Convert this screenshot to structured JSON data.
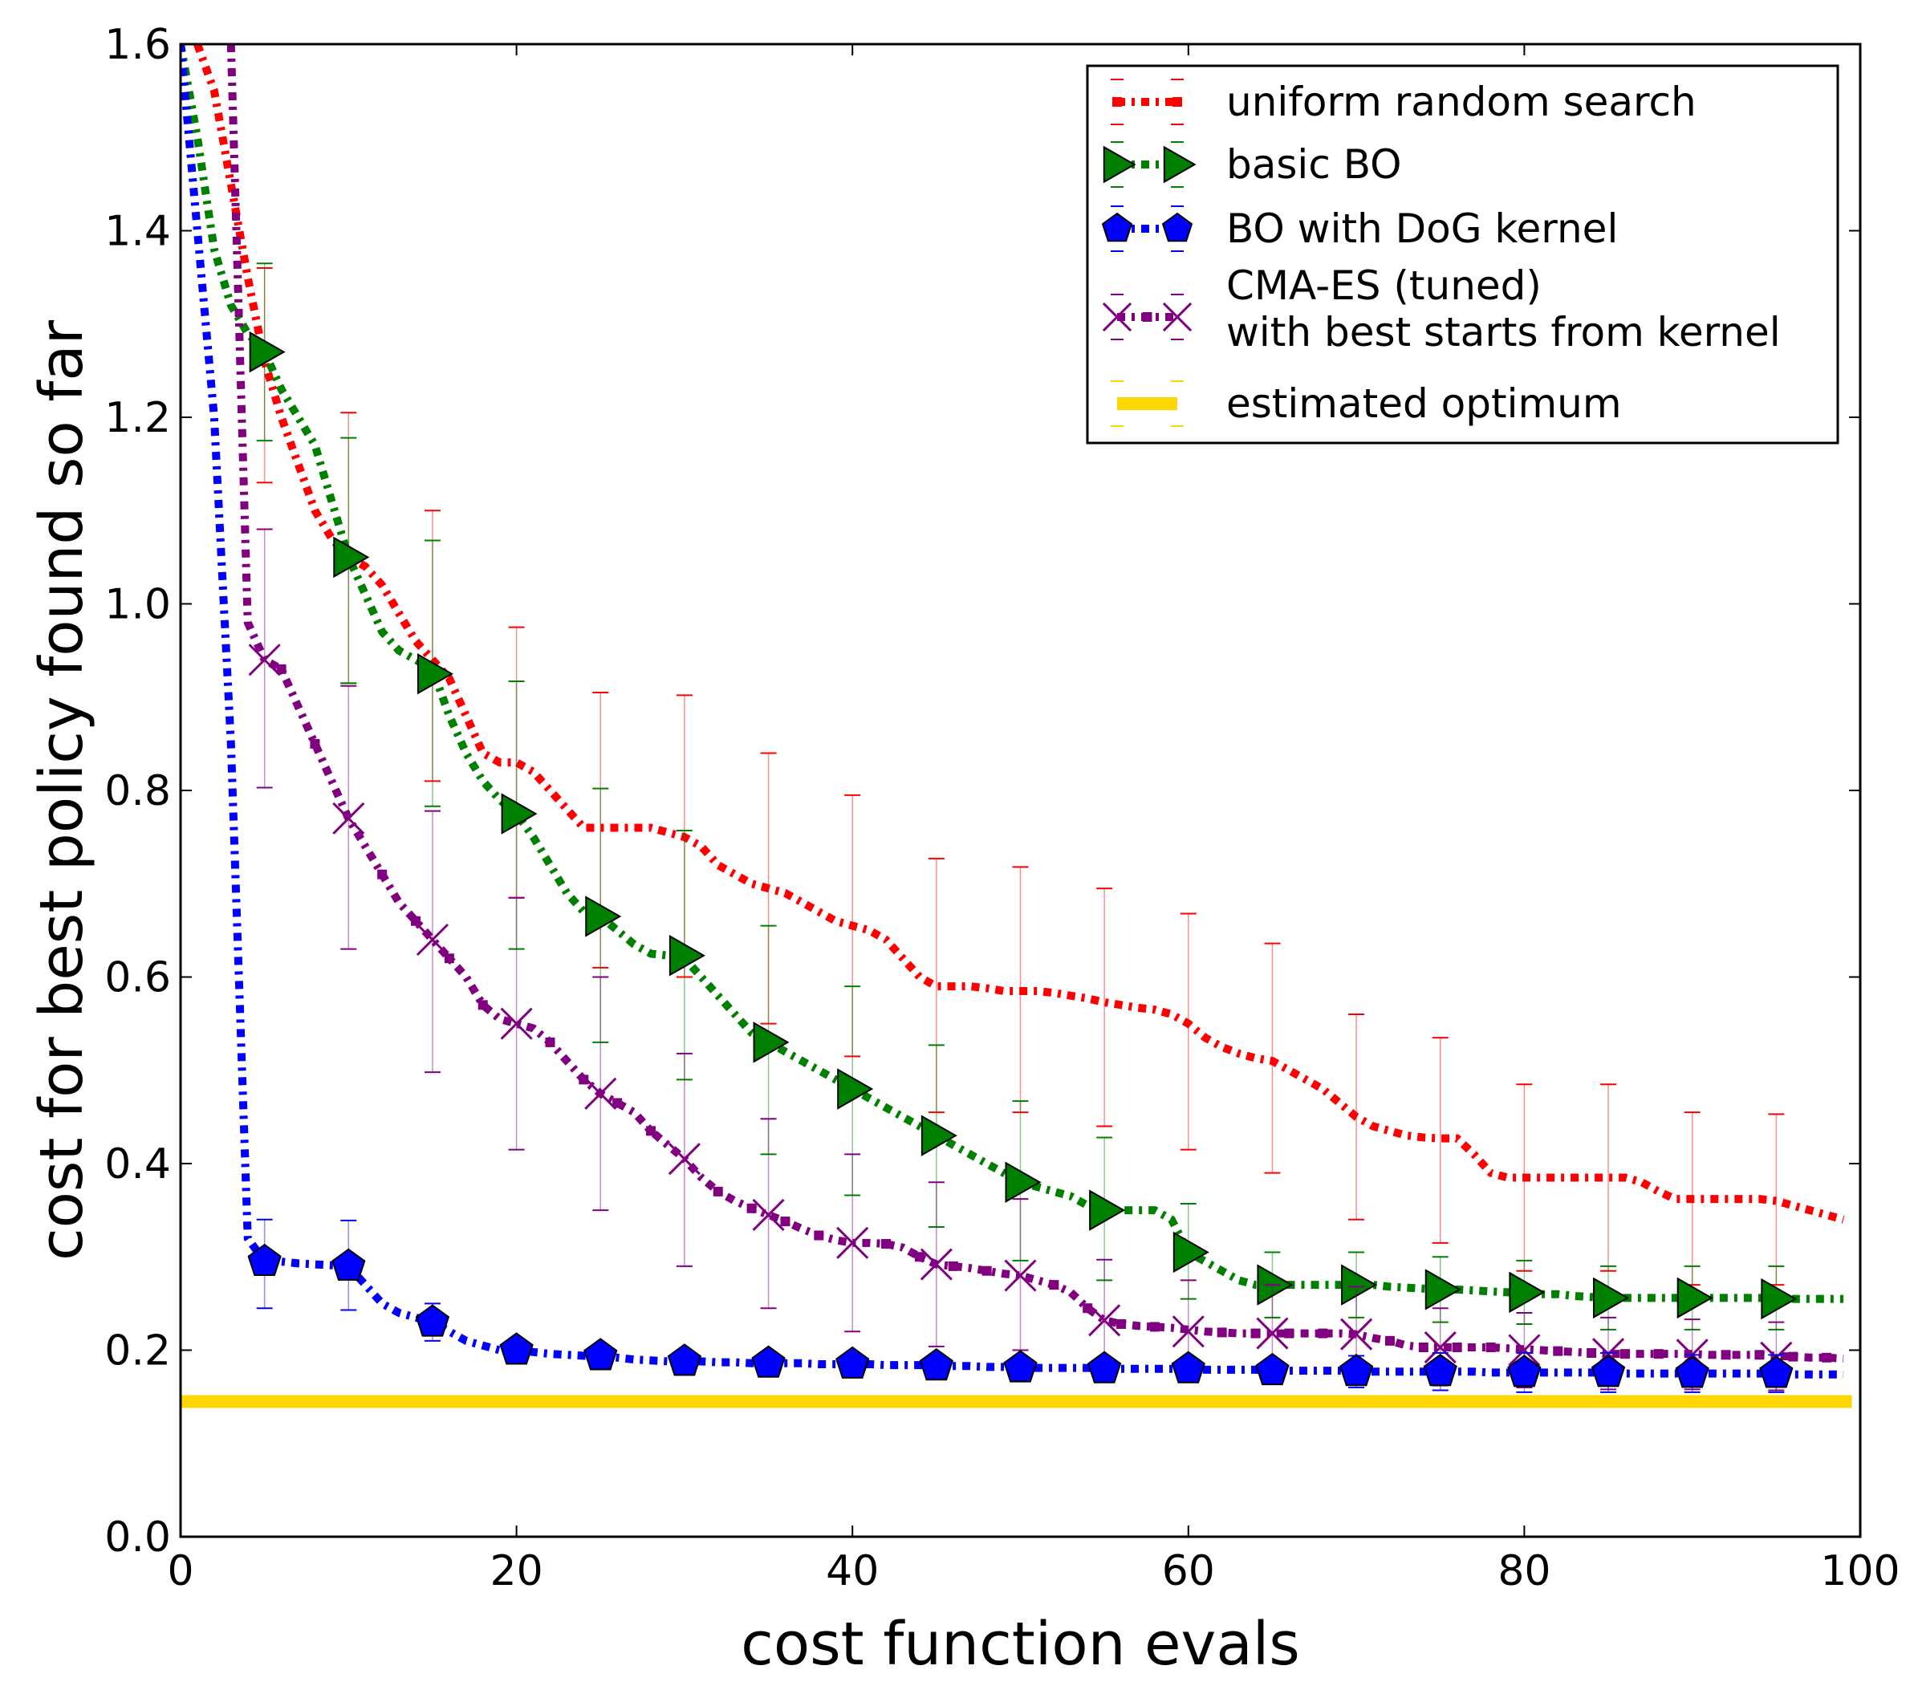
{
  "chart_data": {
    "type": "line",
    "xlabel": "cost function evals",
    "ylabel": "cost for best policy found so far",
    "xlim": [
      0,
      100
    ],
    "ylim": [
      0.0,
      1.6
    ],
    "x_ticks": [
      "0",
      "20",
      "40",
      "60",
      "80",
      "100"
    ],
    "y_ticks": [
      "0.0",
      "0.2",
      "0.4",
      "0.6",
      "0.8",
      "1.0",
      "1.2",
      "1.4",
      "1.6"
    ],
    "legend_position": "top-right",
    "grid": false,
    "series": [
      {
        "name": "uniform random search",
        "color": "#ff0000",
        "marker": "square-small",
        "x": [
          1,
          2,
          3,
          4,
          5,
          6,
          7,
          8,
          9,
          10,
          11,
          12,
          13,
          14,
          15,
          16,
          17,
          18,
          19,
          20,
          21,
          22,
          23,
          24,
          25,
          26,
          27,
          28,
          29,
          30,
          31,
          32,
          33,
          34,
          35,
          36,
          37,
          38,
          39,
          40,
          41,
          42,
          43,
          44,
          45,
          46,
          47,
          48,
          49,
          50,
          51,
          52,
          53,
          54,
          55,
          56,
          57,
          58,
          59,
          60,
          61,
          62,
          63,
          64,
          65,
          66,
          67,
          68,
          69,
          70,
          71,
          72,
          73,
          74,
          75,
          76,
          77,
          78,
          79,
          80,
          81,
          82,
          83,
          84,
          85,
          86,
          87,
          88,
          89,
          90,
          91,
          92,
          93,
          94,
          95,
          96,
          97,
          98,
          99
        ],
        "y": [
          1.6,
          1.55,
          1.45,
          1.35,
          1.26,
          1.2,
          1.15,
          1.1,
          1.07,
          1.05,
          1.04,
          1.02,
          0.99,
          0.96,
          0.94,
          0.92,
          0.88,
          0.84,
          0.83,
          0.83,
          0.82,
          0.8,
          0.78,
          0.76,
          0.76,
          0.76,
          0.76,
          0.76,
          0.755,
          0.75,
          0.74,
          0.72,
          0.71,
          0.7,
          0.695,
          0.69,
          0.68,
          0.67,
          0.66,
          0.655,
          0.65,
          0.64,
          0.62,
          0.6,
          0.59,
          0.59,
          0.59,
          0.588,
          0.585,
          0.585,
          0.585,
          0.583,
          0.58,
          0.577,
          0.573,
          0.57,
          0.567,
          0.565,
          0.56,
          0.55,
          0.535,
          0.525,
          0.518,
          0.513,
          0.51,
          0.5,
          0.49,
          0.48,
          0.465,
          0.45,
          0.44,
          0.435,
          0.43,
          0.428,
          0.427,
          0.427,
          0.41,
          0.39,
          0.385,
          0.385,
          0.385,
          0.385,
          0.385,
          0.385,
          0.385,
          0.385,
          0.38,
          0.37,
          0.362,
          0.362,
          0.362,
          0.362,
          0.362,
          0.362,
          0.36,
          0.355,
          0.35,
          0.345,
          0.34
        ],
        "err_x": [
          5,
          10,
          15,
          20,
          25,
          30,
          35,
          40,
          45,
          50,
          55,
          60,
          65,
          70,
          75,
          80,
          85,
          90,
          95
        ],
        "err_mean": [
          1.26,
          1.05,
          0.94,
          0.83,
          0.76,
          0.755,
          0.695,
          0.655,
          0.59,
          0.585,
          0.573,
          0.55,
          0.513,
          0.45,
          0.427,
          0.385,
          0.385,
          0.362,
          0.36
        ],
        "err_lo": [
          1.13,
          0.915,
          0.81,
          0.685,
          0.61,
          0.6,
          0.55,
          0.515,
          0.455,
          0.455,
          0.44,
          0.415,
          0.39,
          0.34,
          0.315,
          0.285,
          0.285,
          0.27,
          0.27
        ],
        "err_hi": [
          1.36,
          1.205,
          1.1,
          0.975,
          0.905,
          0.902,
          0.84,
          0.795,
          0.727,
          0.718,
          0.695,
          0.668,
          0.636,
          0.56,
          0.535,
          0.485,
          0.485,
          0.455,
          0.453
        ]
      },
      {
        "name": "basic BO",
        "color": "#008000",
        "marker": "triangle-right",
        "x": [
          0,
          1,
          2,
          3,
          4,
          5,
          6,
          7,
          8,
          9,
          10,
          11,
          12,
          13,
          14,
          15,
          16,
          17,
          18,
          19,
          20,
          21,
          22,
          23,
          24,
          25,
          26,
          27,
          28,
          29,
          30,
          31,
          32,
          33,
          34,
          35,
          36,
          37,
          38,
          39,
          40,
          41,
          42,
          43,
          44,
          45,
          46,
          47,
          48,
          49,
          50,
          51,
          52,
          53,
          54,
          55,
          56,
          57,
          58,
          59,
          60,
          61,
          62,
          63,
          64,
          65,
          66,
          67,
          68,
          69,
          70,
          71,
          72,
          73,
          74,
          75,
          76,
          77,
          78,
          79,
          80,
          81,
          82,
          83,
          84,
          85,
          86,
          87,
          88,
          89,
          90,
          91,
          92,
          93,
          94,
          95,
          96,
          97,
          98,
          99
        ],
        "y": [
          1.6,
          1.5,
          1.38,
          1.32,
          1.29,
          1.27,
          1.23,
          1.2,
          1.17,
          1.11,
          1.05,
          1.01,
          0.97,
          0.95,
          0.94,
          0.93,
          0.88,
          0.84,
          0.81,
          0.79,
          0.775,
          0.75,
          0.72,
          0.69,
          0.67,
          0.665,
          0.65,
          0.635,
          0.625,
          0.623,
          0.62,
          0.6,
          0.58,
          0.56,
          0.54,
          0.53,
          0.52,
          0.51,
          0.5,
          0.49,
          0.48,
          0.47,
          0.46,
          0.45,
          0.44,
          0.43,
          0.42,
          0.41,
          0.4,
          0.39,
          0.38,
          0.375,
          0.37,
          0.365,
          0.355,
          0.35,
          0.35,
          0.35,
          0.35,
          0.34,
          0.305,
          0.295,
          0.285,
          0.275,
          0.27,
          0.27,
          0.27,
          0.27,
          0.27,
          0.27,
          0.27,
          0.27,
          0.268,
          0.267,
          0.266,
          0.265,
          0.265,
          0.264,
          0.263,
          0.262,
          0.262,
          0.26,
          0.26,
          0.258,
          0.257,
          0.256,
          0.256,
          0.256,
          0.256,
          0.256,
          0.256,
          0.256,
          0.256,
          0.256,
          0.256,
          0.256,
          0.255,
          0.255,
          0.255,
          0.255
        ],
        "err_x": [
          5,
          10,
          15,
          20,
          25,
          30,
          35,
          40,
          45,
          50,
          55,
          60,
          65,
          70,
          75,
          80,
          85,
          90,
          95
        ],
        "err_mean": [
          1.27,
          1.05,
          0.925,
          0.775,
          0.665,
          0.623,
          0.53,
          0.48,
          0.43,
          0.38,
          0.35,
          0.305,
          0.27,
          0.27,
          0.265,
          0.262,
          0.256,
          0.256,
          0.255
        ],
        "err_lo": [
          1.175,
          0.915,
          0.783,
          0.63,
          0.53,
          0.49,
          0.41,
          0.366,
          0.332,
          0.296,
          0.275,
          0.255,
          0.235,
          0.235,
          0.23,
          0.228,
          0.222,
          0.222,
          0.222
        ],
        "err_hi": [
          1.365,
          1.178,
          1.068,
          0.917,
          0.802,
          0.757,
          0.655,
          0.59,
          0.527,
          0.467,
          0.428,
          0.357,
          0.305,
          0.305,
          0.3,
          0.296,
          0.29,
          0.29,
          0.29
        ]
      },
      {
        "name": "BO with DoG kernel",
        "color": "#0000ff",
        "marker": "pentagon",
        "x": [
          0,
          1,
          2,
          3,
          4,
          5,
          6,
          7,
          8,
          9,
          10,
          11,
          12,
          13,
          14,
          15,
          16,
          17,
          18,
          19,
          20,
          21,
          22,
          23,
          24,
          25,
          26,
          27,
          28,
          29,
          30,
          31,
          32,
          33,
          34,
          35,
          36,
          37,
          38,
          39,
          40,
          41,
          42,
          43,
          44,
          45,
          46,
          47,
          48,
          49,
          50,
          51,
          52,
          53,
          54,
          55,
          56,
          57,
          58,
          59,
          60,
          61,
          62,
          63,
          64,
          65,
          66,
          67,
          68,
          69,
          70,
          71,
          72,
          73,
          74,
          75,
          76,
          77,
          78,
          79,
          80,
          81,
          82,
          83,
          84,
          85,
          86,
          87,
          88,
          89,
          90,
          91,
          92,
          93,
          94,
          95,
          96,
          97,
          98,
          99
        ],
        "y": [
          1.6,
          1.4,
          1.2,
          0.85,
          0.32,
          0.295,
          0.295,
          0.293,
          0.292,
          0.291,
          0.29,
          0.27,
          0.25,
          0.24,
          0.235,
          0.23,
          0.22,
          0.21,
          0.205,
          0.2,
          0.2,
          0.198,
          0.196,
          0.195,
          0.194,
          0.194,
          0.192,
          0.19,
          0.189,
          0.188,
          0.188,
          0.188,
          0.187,
          0.187,
          0.186,
          0.186,
          0.186,
          0.186,
          0.185,
          0.185,
          0.185,
          0.185,
          0.184,
          0.184,
          0.184,
          0.183,
          0.183,
          0.183,
          0.182,
          0.182,
          0.181,
          0.181,
          0.181,
          0.181,
          0.181,
          0.18,
          0.18,
          0.18,
          0.18,
          0.18,
          0.18,
          0.179,
          0.179,
          0.179,
          0.179,
          0.178,
          0.178,
          0.178,
          0.178,
          0.178,
          0.177,
          0.177,
          0.177,
          0.177,
          0.177,
          0.177,
          0.177,
          0.177,
          0.176,
          0.176,
          0.176,
          0.176,
          0.176,
          0.176,
          0.176,
          0.176,
          0.175,
          0.175,
          0.175,
          0.175,
          0.175,
          0.175,
          0.175,
          0.175,
          0.175,
          0.175,
          0.174,
          0.174,
          0.174,
          0.174
        ],
        "err_x": [
          5,
          10,
          15,
          20,
          25,
          30,
          35,
          40,
          45,
          50,
          55,
          60,
          65,
          70,
          75,
          80,
          85,
          90,
          95
        ],
        "err_mean": [
          0.295,
          0.29,
          0.23,
          0.2,
          0.194,
          0.188,
          0.186,
          0.185,
          0.183,
          0.181,
          0.18,
          0.18,
          0.178,
          0.177,
          0.177,
          0.176,
          0.176,
          0.175,
          0.175
        ],
        "err_lo": [
          0.245,
          0.243,
          0.21,
          0.19,
          0.185,
          0.18,
          0.178,
          0.176,
          0.175,
          0.172,
          0.171,
          0.17,
          0.165,
          0.16,
          0.157,
          0.155,
          0.155,
          0.155,
          0.155
        ],
        "err_hi": [
          0.34,
          0.339,
          0.25,
          0.21,
          0.203,
          0.196,
          0.194,
          0.194,
          0.191,
          0.19,
          0.189,
          0.19,
          0.19,
          0.194,
          0.197,
          0.197,
          0.197,
          0.195,
          0.195
        ]
      },
      {
        "name": "CMA-ES (tuned)\nwith best starts from kernel",
        "legend_lines": [
          "CMA-ES (tuned)",
          "with best starts from kernel"
        ],
        "color": "#800080",
        "marker": "x",
        "x": [
          3,
          4,
          5,
          6,
          7,
          8,
          9,
          10,
          11,
          12,
          13,
          14,
          15,
          16,
          17,
          18,
          19,
          20,
          21,
          22,
          23,
          24,
          25,
          26,
          27,
          28,
          29,
          30,
          31,
          32,
          33,
          34,
          35,
          36,
          37,
          38,
          39,
          40,
          41,
          42,
          43,
          44,
          45,
          46,
          47,
          48,
          49,
          50,
          51,
          52,
          53,
          54,
          55,
          56,
          57,
          58,
          59,
          60,
          61,
          62,
          63,
          64,
          65,
          66,
          67,
          68,
          69,
          70,
          71,
          72,
          73,
          74,
          75,
          76,
          77,
          78,
          79,
          80,
          81,
          82,
          83,
          84,
          85,
          86,
          87,
          88,
          89,
          90,
          91,
          92,
          93,
          94,
          95,
          96,
          97,
          98,
          99
        ],
        "y": [
          1.6,
          0.98,
          0.94,
          0.93,
          0.89,
          0.85,
          0.81,
          0.77,
          0.74,
          0.71,
          0.68,
          0.66,
          0.64,
          0.62,
          0.6,
          0.57,
          0.555,
          0.55,
          0.545,
          0.53,
          0.51,
          0.49,
          0.475,
          0.465,
          0.455,
          0.435,
          0.42,
          0.405,
          0.385,
          0.37,
          0.36,
          0.352,
          0.345,
          0.338,
          0.33,
          0.323,
          0.318,
          0.315,
          0.315,
          0.314,
          0.31,
          0.3,
          0.292,
          0.29,
          0.288,
          0.285,
          0.282,
          0.28,
          0.275,
          0.27,
          0.262,
          0.245,
          0.232,
          0.228,
          0.226,
          0.225,
          0.224,
          0.222,
          0.22,
          0.219,
          0.218,
          0.218,
          0.218,
          0.218,
          0.218,
          0.218,
          0.218,
          0.217,
          0.213,
          0.21,
          0.205,
          0.203,
          0.203,
          0.203,
          0.203,
          0.203,
          0.202,
          0.201,
          0.2,
          0.199,
          0.198,
          0.197,
          0.196,
          0.196,
          0.196,
          0.196,
          0.196,
          0.196,
          0.195,
          0.195,
          0.195,
          0.195,
          0.194,
          0.193,
          0.192,
          0.192,
          0.191
        ],
        "err_x": [
          5,
          10,
          15,
          20,
          25,
          30,
          35,
          40,
          45,
          50,
          55,
          60,
          65,
          70,
          75,
          80,
          85,
          90,
          95
        ],
        "err_mean": [
          0.94,
          0.77,
          0.64,
          0.55,
          0.475,
          0.405,
          0.345,
          0.315,
          0.292,
          0.28,
          0.232,
          0.22,
          0.218,
          0.217,
          0.203,
          0.2,
          0.196,
          0.195,
          0.192
        ],
        "err_lo": [
          0.803,
          0.63,
          0.498,
          0.415,
          0.35,
          0.29,
          0.245,
          0.22,
          0.204,
          0.2,
          0.17,
          0.167,
          0.165,
          0.165,
          0.162,
          0.16,
          0.158,
          0.158,
          0.157
        ],
        "err_hi": [
          1.08,
          0.912,
          0.778,
          0.685,
          0.6,
          0.518,
          0.448,
          0.41,
          0.38,
          0.362,
          0.297,
          0.275,
          0.27,
          0.268,
          0.245,
          0.24,
          0.235,
          0.233,
          0.23
        ]
      },
      {
        "name": "estimated optimum",
        "color": "#ffd700",
        "marker": "none",
        "x": [
          0,
          99.5
        ],
        "y": [
          0.145,
          0.145
        ]
      }
    ]
  }
}
